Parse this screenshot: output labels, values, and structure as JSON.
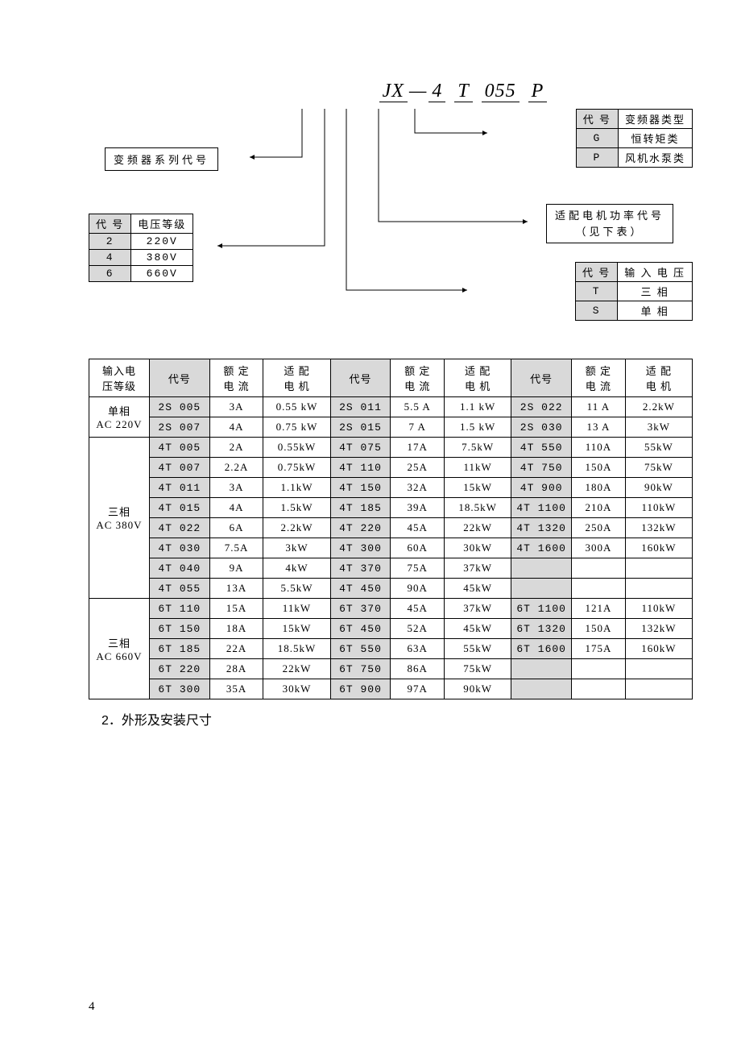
{
  "model": {
    "prefix": "JX",
    "dash": "—",
    "seg1": "4",
    "seg2": "T",
    "seg3": "055",
    "seg4": "P"
  },
  "series_label": "变频器系列代号",
  "voltage_lvl": {
    "hdr_code": "代 号",
    "hdr_val": "电压等级",
    "rows": [
      {
        "c": "2",
        "v": "220V"
      },
      {
        "c": "4",
        "v": "380V"
      },
      {
        "c": "6",
        "v": "660V"
      }
    ]
  },
  "inverter_type": {
    "hdr_code": "代 号",
    "hdr_val": "变频器类型",
    "rows": [
      {
        "c": "G",
        "v": "恒转矩类"
      },
      {
        "c": "P",
        "v": "风机水泵类"
      }
    ]
  },
  "motor_power_label": {
    "l1": "适配电机功率代号",
    "l2": "（见下表）"
  },
  "input_voltage": {
    "hdr_code": "代 号",
    "hdr_val": "输 入 电 压",
    "rows": [
      {
        "c": "T",
        "v": "三  相"
      },
      {
        "c": "S",
        "v": "单  相"
      }
    ]
  },
  "main_headers": {
    "col0": "输入电\n压等级",
    "code": "代号",
    "current": "额 定\n电 流",
    "motor": "适 配\n电 机"
  },
  "groups": [
    {
      "label": "单相\nAC 220V",
      "rows": [
        {
          "c1": "2S 005",
          "a1": "3A",
          "m1": "0.55 kW",
          "c2": "2S 011",
          "a2": "5.5 A",
          "m2": "1.1 kW",
          "c3": "2S 022",
          "a3": "11 A",
          "m3": "2.2kW"
        },
        {
          "c1": "2S 007",
          "a1": "4A",
          "m1": "0.75 kW",
          "c2": "2S 015",
          "a2": "7 A",
          "m2": "1.5 kW",
          "c3": "2S 030",
          "a3": "13 A",
          "m3": "3kW"
        }
      ]
    },
    {
      "label": "三相\nAC 380V",
      "rows": [
        {
          "c1": "4T 005",
          "a1": "2A",
          "m1": "0.55kW",
          "c2": "4T 075",
          "a2": "17A",
          "m2": "7.5kW",
          "c3": "4T 550",
          "a3": "110A",
          "m3": "55kW"
        },
        {
          "c1": "4T 007",
          "a1": "2.2A",
          "m1": "0.75kW",
          "c2": "4T 110",
          "a2": "25A",
          "m2": "11kW",
          "c3": "4T 750",
          "a3": "150A",
          "m3": "75kW"
        },
        {
          "c1": "4T 011",
          "a1": "3A",
          "m1": "1.1kW",
          "c2": "4T 150",
          "a2": "32A",
          "m2": "15kW",
          "c3": "4T 900",
          "a3": "180A",
          "m3": "90kW"
        },
        {
          "c1": "4T 015",
          "a1": "4A",
          "m1": "1.5kW",
          "c2": "4T 185",
          "a2": "39A",
          "m2": "18.5kW",
          "c3": "4T 1100",
          "a3": "210A",
          "m3": "110kW"
        },
        {
          "c1": "4T 022",
          "a1": "6A",
          "m1": "2.2kW",
          "c2": "4T 220",
          "a2": "45A",
          "m2": "22kW",
          "c3": "4T 1320",
          "a3": "250A",
          "m3": "132kW"
        },
        {
          "c1": "4T 030",
          "a1": "7.5A",
          "m1": "3kW",
          "c2": "4T 300",
          "a2": "60A",
          "m2": "30kW",
          "c3": "4T 1600",
          "a3": "300A",
          "m3": "160kW"
        },
        {
          "c1": "4T 040",
          "a1": "9A",
          "m1": "4kW",
          "c2": "4T 370",
          "a2": "75A",
          "m2": "37kW",
          "c3": "",
          "a3": "",
          "m3": ""
        },
        {
          "c1": "4T 055",
          "a1": "13A",
          "m1": "5.5kW",
          "c2": "4T 450",
          "a2": "90A",
          "m2": "45kW",
          "c3": "",
          "a3": "",
          "m3": ""
        }
      ]
    },
    {
      "label": "三相\nAC 660V",
      "rows": [
        {
          "c1": "6T 110",
          "a1": "15A",
          "m1": "11kW",
          "c2": "6T 370",
          "a2": "45A",
          "m2": "37kW",
          "c3": "6T 1100",
          "a3": "121A",
          "m3": "110kW"
        },
        {
          "c1": "6T 150",
          "a1": "18A",
          "m1": "15kW",
          "c2": "6T 450",
          "a2": "52A",
          "m2": "45kW",
          "c3": "6T 1320",
          "a3": "150A",
          "m3": "132kW"
        },
        {
          "c1": "6T 185",
          "a1": "22A",
          "m1": "18.5kW",
          "c2": "6T 550",
          "a2": "63A",
          "m2": "55kW",
          "c3": "6T 1600",
          "a3": "175A",
          "m3": "160kW"
        },
        {
          "c1": "6T 220",
          "a1": "28A",
          "m1": "22kW",
          "c2": "6T 750",
          "a2": "86A",
          "m2": "75kW",
          "c3": "",
          "a3": "",
          "m3": ""
        },
        {
          "c1": "6T 300",
          "a1": "35A",
          "m1": "30kW",
          "c2": "6T 900",
          "a2": "97A",
          "m2": "90kW",
          "c3": "",
          "a3": "",
          "m3": ""
        }
      ]
    }
  ],
  "section_heading": "2．外形及安装尺寸",
  "page_number": "4",
  "arrows": {
    "stroke": "#000000",
    "stroke_width": 1,
    "paths": [
      "M 265 0 L 265 60 L 200 60",
      "M 293 0 L 293 170 L 160 170",
      "M 320 0 L 320 225 L 470 225",
      "M 360 0 L 360 140 L 545 140",
      "M 405 0 L 405 30 L 495 30"
    ]
  }
}
